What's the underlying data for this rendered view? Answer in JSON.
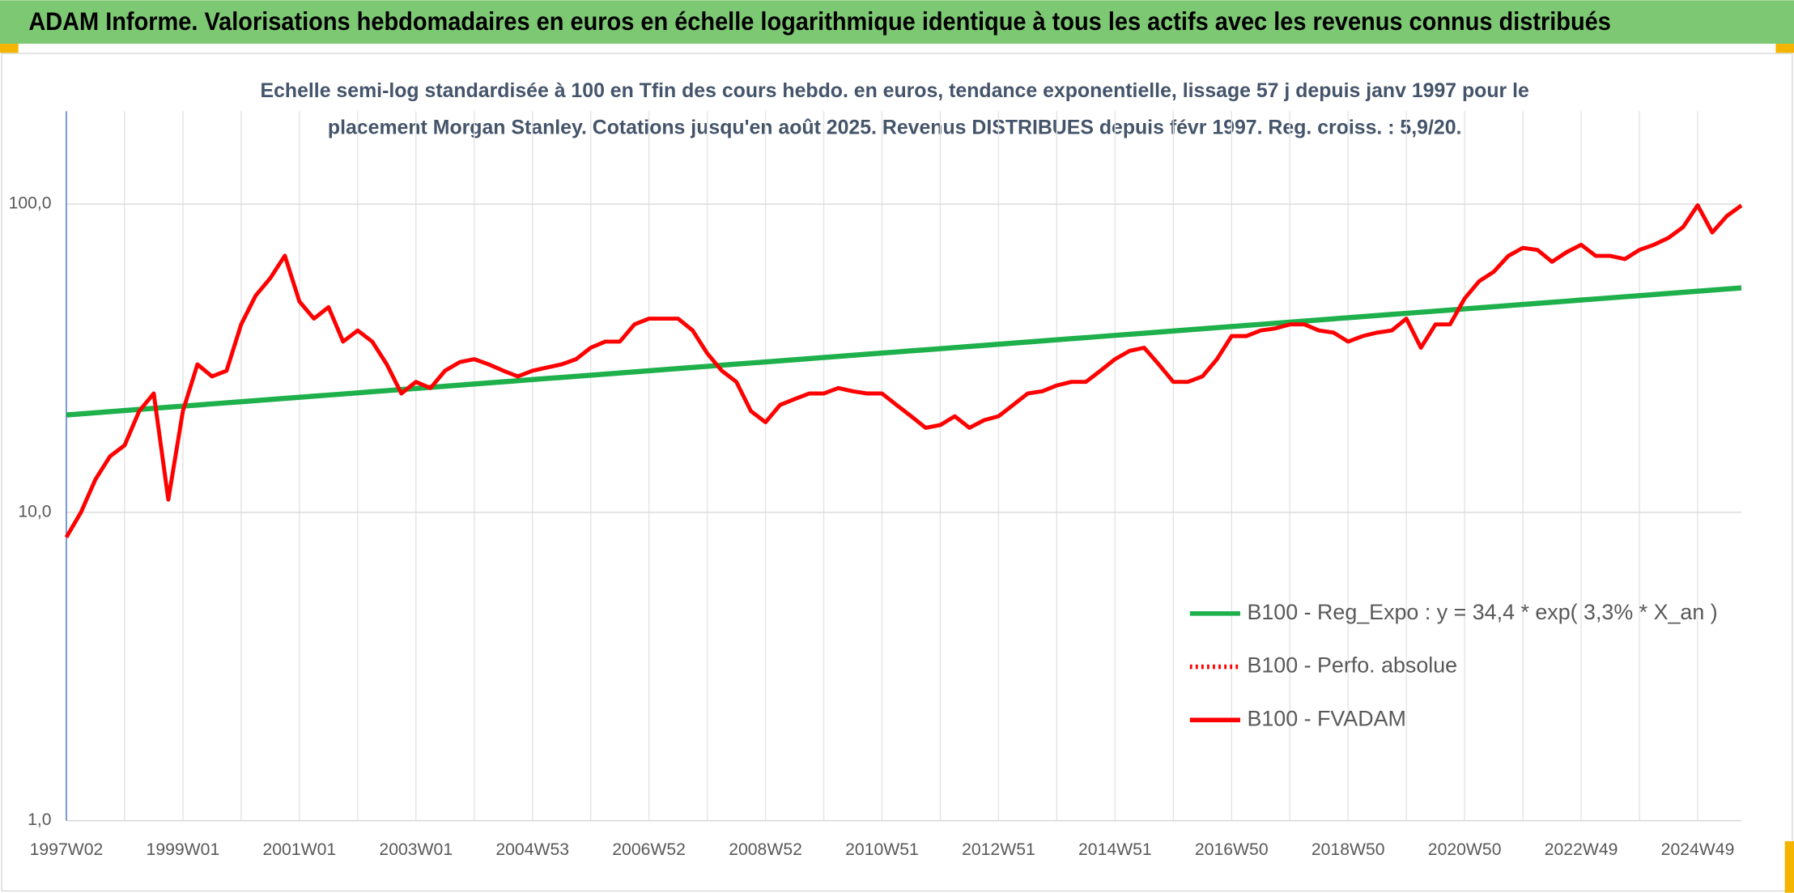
{
  "header": {
    "title": "ADAM Informe. Valorisations hebdomadaires en euros en échelle logarithmique identique à tous les actifs avec les revenus connus distribués"
  },
  "chart_data": {
    "type": "line",
    "subtitle": [
      "Echelle semi-log standardisée à 100 en Tfin des cours hebdo. en euros, tendance exponentielle, lissage 57 j depuis janv 1997 pour le",
      "placement Morgan Stanley. Cotations jusqu'en août 2025. Revenus DISTRIBUES depuis févr 1997. Reg. croiss. : 5,9/20."
    ],
    "categories": [
      "1997W02",
      null,
      null,
      null,
      null,
      null,
      null,
      null,
      "1999W01",
      null,
      null,
      null,
      null,
      null,
      null,
      null,
      "2001W01",
      null,
      null,
      null,
      null,
      null,
      null,
      null,
      "2003W01",
      null,
      null,
      null,
      null,
      null,
      null,
      null,
      "2004W53",
      null,
      null,
      null,
      null,
      null,
      null,
      null,
      "2006W52",
      null,
      null,
      null,
      null,
      null,
      null,
      null,
      "2008W52",
      null,
      null,
      null,
      null,
      null,
      null,
      null,
      "2010W51",
      null,
      null,
      null,
      null,
      null,
      null,
      null,
      "2012W51",
      null,
      null,
      null,
      null,
      null,
      null,
      null,
      "2014W51",
      null,
      null,
      null,
      null,
      null,
      null,
      null,
      "2016W50",
      null,
      null,
      null,
      null,
      null,
      null,
      null,
      "2018W50",
      null,
      null,
      null,
      null,
      null,
      null,
      null,
      "2020W50",
      null,
      null,
      null,
      null,
      null,
      null,
      null,
      "2022W49",
      null,
      null,
      null,
      null,
      null,
      null,
      null,
      "2024W49",
      null,
      null,
      null
    ],
    "log_scale": true,
    "ylim": [
      1,
      200
    ],
    "yticks": [
      {
        "value": 1,
        "label": "1,0"
      },
      {
        "value": 10,
        "label": "10,0"
      },
      {
        "value": 100,
        "label": "100,0"
      }
    ],
    "grid": true,
    "legend": "lower right",
    "series": [
      {
        "name": "B100 - Reg_Expo : y = 34,4 * exp( 3,3% *  X_an )",
        "color": "#1db04b",
        "line_style": "solid",
        "values": [
          20.7,
          20.87,
          21.04,
          21.22,
          21.39,
          21.57,
          21.75,
          21.93,
          22.11,
          22.29,
          22.48,
          22.67,
          22.85,
          23.04,
          23.23,
          23.43,
          23.62,
          23.82,
          24.01,
          24.21,
          24.41,
          24.62,
          24.82,
          25.03,
          25.23,
          25.44,
          25.65,
          25.87,
          26.08,
          26.3,
          26.51,
          26.73,
          26.96,
          27.18,
          27.4,
          27.63,
          27.86,
          28.09,
          28.32,
          28.56,
          28.79,
          29.03,
          29.27,
          29.52,
          29.76,
          30.01,
          30.26,
          30.51,
          30.76,
          31.01,
          31.27,
          31.53,
          31.79,
          32.06,
          32.32,
          32.59,
          32.86,
          33.13,
          33.41,
          33.68,
          33.96,
          34.24,
          34.53,
          34.81,
          35.1,
          35.39,
          35.69,
          35.98,
          36.28,
          36.58,
          36.88,
          37.19,
          37.5,
          37.81,
          38.12,
          38.44,
          38.76,
          39.08,
          39.4,
          39.73,
          40.06,
          40.39,
          40.72,
          41.06,
          41.4,
          41.74,
          42.09,
          42.44,
          42.79,
          43.14,
          43.5,
          43.86,
          44.22,
          44.59,
          44.96,
          45.33,
          45.71,
          46.08,
          46.47,
          46.85,
          47.24,
          47.63,
          48.03,
          48.42,
          48.83,
          49.23,
          49.64,
          50.05,
          50.46,
          50.88,
          51.3,
          51.73,
          52.16,
          52.59,
          53.02,
          53.46
        ]
      },
      {
        "name": "B100 - Perfo. absolue",
        "color": "#ff0000",
        "line_style": "dotted",
        "values": [
          null,
          null,
          null,
          null,
          null,
          null,
          null,
          null,
          null,
          null,
          null,
          null,
          null,
          null,
          null,
          null,
          null,
          null,
          null,
          null,
          null,
          null,
          null,
          null,
          null,
          null,
          null,
          null,
          null,
          null,
          null,
          null,
          null,
          null,
          null,
          null,
          null,
          null,
          null,
          null,
          null,
          null,
          null,
          null,
          null,
          null,
          null,
          null,
          null,
          null,
          null,
          null,
          null,
          null,
          null,
          null,
          null,
          null,
          null,
          null,
          null,
          null,
          null,
          null,
          null,
          null,
          null,
          null,
          null,
          null,
          null,
          null,
          null,
          null,
          null,
          null,
          null,
          null,
          null,
          null,
          null,
          null,
          null,
          null,
          null,
          null,
          null,
          null,
          null,
          null,
          null,
          null,
          null,
          null,
          null,
          null,
          null,
          null,
          null,
          null,
          null,
          null,
          null,
          null,
          null,
          null,
          null,
          null,
          null,
          null,
          null,
          null,
          null,
          null,
          null,
          null
        ]
      },
      {
        "name": "B100 - FVADAM",
        "color": "#ff0000",
        "line_style": "solid",
        "values": [
          8.3,
          10,
          12.8,
          15.2,
          16.5,
          21.3,
          24.3,
          11,
          21.3,
          30.2,
          27.6,
          28.8,
          40.7,
          50.5,
          57.5,
          68,
          48.3,
          42.5,
          46.3,
          35.8,
          38.9,
          35.8,
          30.2,
          24.3,
          26.5,
          25.3,
          28.8,
          30.7,
          31.4,
          30.2,
          28.8,
          27.6,
          28.8,
          29.5,
          30.2,
          31.4,
          34.2,
          35.8,
          35.8,
          40.7,
          42.5,
          42.5,
          42.5,
          38.9,
          32.8,
          28.8,
          26.5,
          21.3,
          19.6,
          22.3,
          23.3,
          24.3,
          24.3,
          25.3,
          24.7,
          24.3,
          24.3,
          22.3,
          20.5,
          18.8,
          19.2,
          20.5,
          18.8,
          19.9,
          20.5,
          22.3,
          24.3,
          24.7,
          25.8,
          26.5,
          26.5,
          28.8,
          31.4,
          33.4,
          34.2,
          30.2,
          26.5,
          26.5,
          27.6,
          31.4,
          37.3,
          37.3,
          38.9,
          39.5,
          40.7,
          40.7,
          38.9,
          38.3,
          35.8,
          37.3,
          38.3,
          38.9,
          42.5,
          34.2,
          40.7,
          40.7,
          49.4,
          56.2,
          60.3,
          67.9,
          72.1,
          71,
          65,
          69.8,
          73.8,
          67.9,
          67.9,
          66.3,
          71,
          73.8,
          77.7,
          84.2,
          99.1,
          80.9,
          91.4,
          99
        ]
      }
    ]
  }
}
